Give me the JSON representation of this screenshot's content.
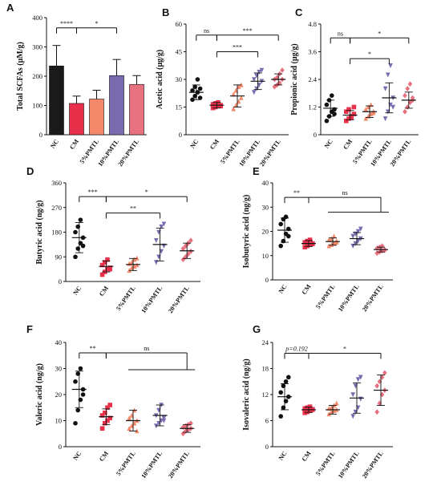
{
  "chart_data": [
    {
      "id": "A",
      "type": "bar",
      "ylabel": "Total SCFAs (μM/g)",
      "ylim": [
        0,
        400
      ],
      "yticks": [
        0,
        100,
        200,
        300,
        400
      ],
      "categories": [
        "NC",
        "CM",
        "5%PMTL",
        "10%PMTL",
        "20%PMTL"
      ],
      "colors": [
        "#1a1a1a",
        "#e8304a",
        "#f3896a",
        "#7a6bb0",
        "#e8707f"
      ],
      "values": [
        235,
        107,
        122,
        202,
        172
      ],
      "errors": [
        70,
        25,
        30,
        55,
        30
      ],
      "significance": [
        {
          "from": 0,
          "to": 1,
          "label": "****",
          "y": 365
        },
        {
          "from": 1,
          "to": 3,
          "label": "*",
          "y": 365
        }
      ]
    },
    {
      "id": "B",
      "type": "scatter",
      "ylabel": "Acetic acid (μg/g)",
      "ylim": [
        0,
        60
      ],
      "yticks": [
        0,
        15,
        30,
        45,
        60
      ],
      "categories": [
        "NC",
        "CM",
        "5%PMTL",
        "10%PMTL",
        "20%PMTL"
      ],
      "colors": [
        "#111111",
        "#e8304a",
        "#f3896a",
        "#7a6bb0",
        "#e8707f"
      ],
      "markers": [
        "circle",
        "square",
        "triangle-up",
        "triangle-down",
        "diamond"
      ],
      "means": [
        23,
        16,
        21,
        29,
        30
      ],
      "sd": [
        4,
        1.5,
        6,
        4.5,
        3
      ],
      "points": [
        [
          19,
          21,
          23,
          25,
          24,
          26,
          30,
          20
        ],
        [
          14.5,
          15,
          16,
          16,
          16.5,
          17,
          17.5,
          15.5
        ],
        [
          14,
          16,
          18,
          20,
          22,
          24,
          26,
          27
        ],
        [
          23,
          25,
          27,
          29,
          30,
          32,
          34,
          35
        ],
        [
          26,
          27,
          28,
          30,
          30,
          31,
          33,
          35
        ]
      ],
      "significance": [
        {
          "from": 0,
          "to": 1,
          "label": "ns",
          "y": 54
        },
        {
          "from": 1,
          "to": 4,
          "label": "***",
          "y": 54
        },
        {
          "from": 1,
          "to": 3,
          "label": "***",
          "y": 45
        }
      ]
    },
    {
      "id": "C",
      "type": "scatter",
      "ylabel": "Propionic acid (μg/g)",
      "ylim": [
        0,
        4.8
      ],
      "yticks": [
        0,
        1.2,
        2.4,
        3.6,
        4.8
      ],
      "categories": [
        "NC",
        "CM",
        "5%PMTL",
        "10%PMTL",
        "20%PMTL"
      ],
      "colors": [
        "#111111",
        "#e8304a",
        "#f3896a",
        "#7a6bb0",
        "#e8707f"
      ],
      "markers": [
        "circle",
        "square",
        "triangle-up",
        "triangle-down",
        "diamond"
      ],
      "means": [
        1.15,
        0.85,
        1.0,
        1.6,
        1.5
      ],
      "sd": [
        0.35,
        0.2,
        0.25,
        0.65,
        0.35
      ],
      "points": [
        [
          0.6,
          0.8,
          1.0,
          1.1,
          1.3,
          1.5,
          1.7,
          0.9
        ],
        [
          0.6,
          0.7,
          0.8,
          0.9,
          1.0,
          1.1,
          0.75,
          1.2
        ],
        [
          0.7,
          0.8,
          0.9,
          1.0,
          1.1,
          1.2,
          1.3,
          0.95
        ],
        [
          0.7,
          1.0,
          1.3,
          1.6,
          2.0,
          2.6,
          3.0,
          1.2
        ],
        [
          1.0,
          1.2,
          1.4,
          1.5,
          1.7,
          2.0,
          2.2,
          1.6
        ]
      ],
      "significance": [
        {
          "from": 0,
          "to": 1,
          "label": "ns",
          "y": 4.2
        },
        {
          "from": 1,
          "to": 4,
          "label": "*",
          "y": 4.2
        },
        {
          "from": 1,
          "to": 3,
          "label": "*",
          "y": 3.3
        }
      ]
    },
    {
      "id": "D",
      "type": "scatter",
      "ylabel": "Butyric acid (ng/g)",
      "ylim": [
        0,
        360
      ],
      "yticks": [
        0,
        90,
        180,
        270,
        360
      ],
      "categories": [
        "NC",
        "CM",
        "5%PMTL",
        "10%PMTL",
        "20%PMTL"
      ],
      "colors": [
        "#111111",
        "#e8304a",
        "#f3896a",
        "#7a6bb0",
        "#e8707f"
      ],
      "markers": [
        "circle",
        "square",
        "triangle-up",
        "triangle-down",
        "diamond"
      ],
      "means": [
        160,
        55,
        62,
        135,
        112
      ],
      "sd": [
        55,
        20,
        22,
        60,
        28
      ],
      "points": [
        [
          90,
          120,
          140,
          160,
          180,
          200,
          225,
          130
        ],
        [
          25,
          35,
          45,
          50,
          60,
          70,
          80,
          45
        ],
        [
          40,
          50,
          55,
          60,
          65,
          70,
          80,
          85
        ],
        [
          70,
          90,
          110,
          130,
          150,
          180,
          200,
          210
        ],
        [
          80,
          90,
          100,
          110,
          120,
          130,
          140,
          150
        ]
      ],
      "significance": [
        {
          "from": 0,
          "to": 1,
          "label": "***",
          "y": 310
        },
        {
          "from": 1,
          "to": 4,
          "label": "*",
          "y": 310
        },
        {
          "from": 1,
          "to": 3,
          "label": "**",
          "y": 250
        }
      ]
    },
    {
      "id": "E",
      "type": "scatter",
      "ylabel": "Isobutyric acid (ng/g)",
      "ylim": [
        0,
        40
      ],
      "yticks": [
        0,
        10,
        20,
        30,
        40
      ],
      "categories": [
        "NC",
        "CM",
        "5%PMTL",
        "10%PMTL",
        "20%PMTL"
      ],
      "colors": [
        "#111111",
        "#e8304a",
        "#f3896a",
        "#7a6bb0",
        "#e8707f"
      ],
      "markers": [
        "circle",
        "square",
        "triangle-up",
        "triangle-down",
        "diamond"
      ],
      "means": [
        20.5,
        15,
        15.8,
        17,
        12.5
      ],
      "sd": [
        5,
        1.2,
        1.5,
        2.5,
        1
      ],
      "points": [
        [
          14,
          16,
          19,
          21,
          23,
          25,
          26,
          18
        ],
        [
          13.5,
          14,
          14.5,
          15,
          15.5,
          16,
          16.5,
          14.8
        ],
        [
          14,
          14.5,
          15,
          16,
          16.5,
          17,
          18,
          15.5
        ],
        [
          14,
          15,
          16,
          17,
          18,
          19,
          20,
          21
        ],
        [
          11,
          11.5,
          12,
          12.5,
          13,
          13.5,
          14,
          12.2
        ]
      ],
      "significance": [
        {
          "from": 0,
          "to": 1,
          "label": "**",
          "y": 34
        },
        {
          "from": 1,
          "to": 4,
          "label": "ns",
          "y": 34,
          "bracket": true
        }
      ]
    },
    {
      "id": "F",
      "type": "scatter",
      "ylabel": "Valeric acid (ng/g)",
      "ylim": [
        0,
        40
      ],
      "yticks": [
        0,
        10,
        20,
        30,
        40
      ],
      "categories": [
        "NC",
        "CM",
        "5%PMTL",
        "10%PMTL",
        "20%PMTL"
      ],
      "colors": [
        "#111111",
        "#e8304a",
        "#f3896a",
        "#7a6bb0",
        "#e8707f"
      ],
      "markers": [
        "circle",
        "square",
        "triangle-up",
        "triangle-down",
        "diamond"
      ],
      "means": [
        22,
        11.5,
        10,
        12,
        7
      ],
      "sd": [
        7,
        3,
        4,
        4,
        1.5
      ],
      "points": [
        [
          9,
          14,
          18,
          22,
          25,
          28,
          30,
          20
        ],
        [
          7,
          9,
          10,
          11,
          12,
          13,
          15,
          16
        ],
        [
          7,
          8,
          9,
          10,
          11,
          12,
          14,
          6
        ],
        [
          8,
          9,
          10,
          11,
          12,
          14,
          16,
          10
        ],
        [
          5,
          6,
          6.5,
          7,
          7.5,
          8,
          8.5,
          9
        ]
      ],
      "significance": [
        {
          "from": 0,
          "to": 1,
          "label": "**",
          "y": 36
        },
        {
          "from": 1,
          "to": 4,
          "label": "ns",
          "y": 36,
          "bracket": true
        }
      ]
    },
    {
      "id": "G",
      "type": "scatter",
      "ylabel": "Isovaleric acid (ng/g)",
      "ylim": [
        0,
        24
      ],
      "yticks": [
        0,
        6,
        12,
        18,
        24
      ],
      "categories": [
        "NC",
        "CM",
        "5%PMTL",
        "10%PMTL",
        "20%PMTL"
      ],
      "colors": [
        "#111111",
        "#e8304a",
        "#f3896a",
        "#7a6bb0",
        "#e8707f"
      ],
      "markers": [
        "circle",
        "square",
        "triangle-up",
        "triangle-down",
        "diamond"
      ],
      "means": [
        11.5,
        8.5,
        8.5,
        11.2,
        13
      ],
      "sd": [
        3,
        0.6,
        1,
        3.5,
        3.5
      ],
      "points": [
        [
          7,
          9,
          10.5,
          11.5,
          12.5,
          14,
          15,
          16
        ],
        [
          7.8,
          8,
          8.3,
          8.5,
          8.8,
          9,
          9.2,
          8.6
        ],
        [
          7.5,
          8,
          8.3,
          8.5,
          8.8,
          9,
          9.5,
          10
        ],
        [
          7,
          8,
          9,
          11,
          12,
          14,
          15.5,
          16
        ],
        [
          8,
          10,
          12,
          13,
          14,
          15,
          16,
          17
        ]
      ],
      "significance": [
        {
          "from": 0,
          "to": 1,
          "label": "p=0.192",
          "y": 21.5
        },
        {
          "from": 1,
          "to": 4,
          "label": "*",
          "y": 21.5
        }
      ]
    }
  ]
}
